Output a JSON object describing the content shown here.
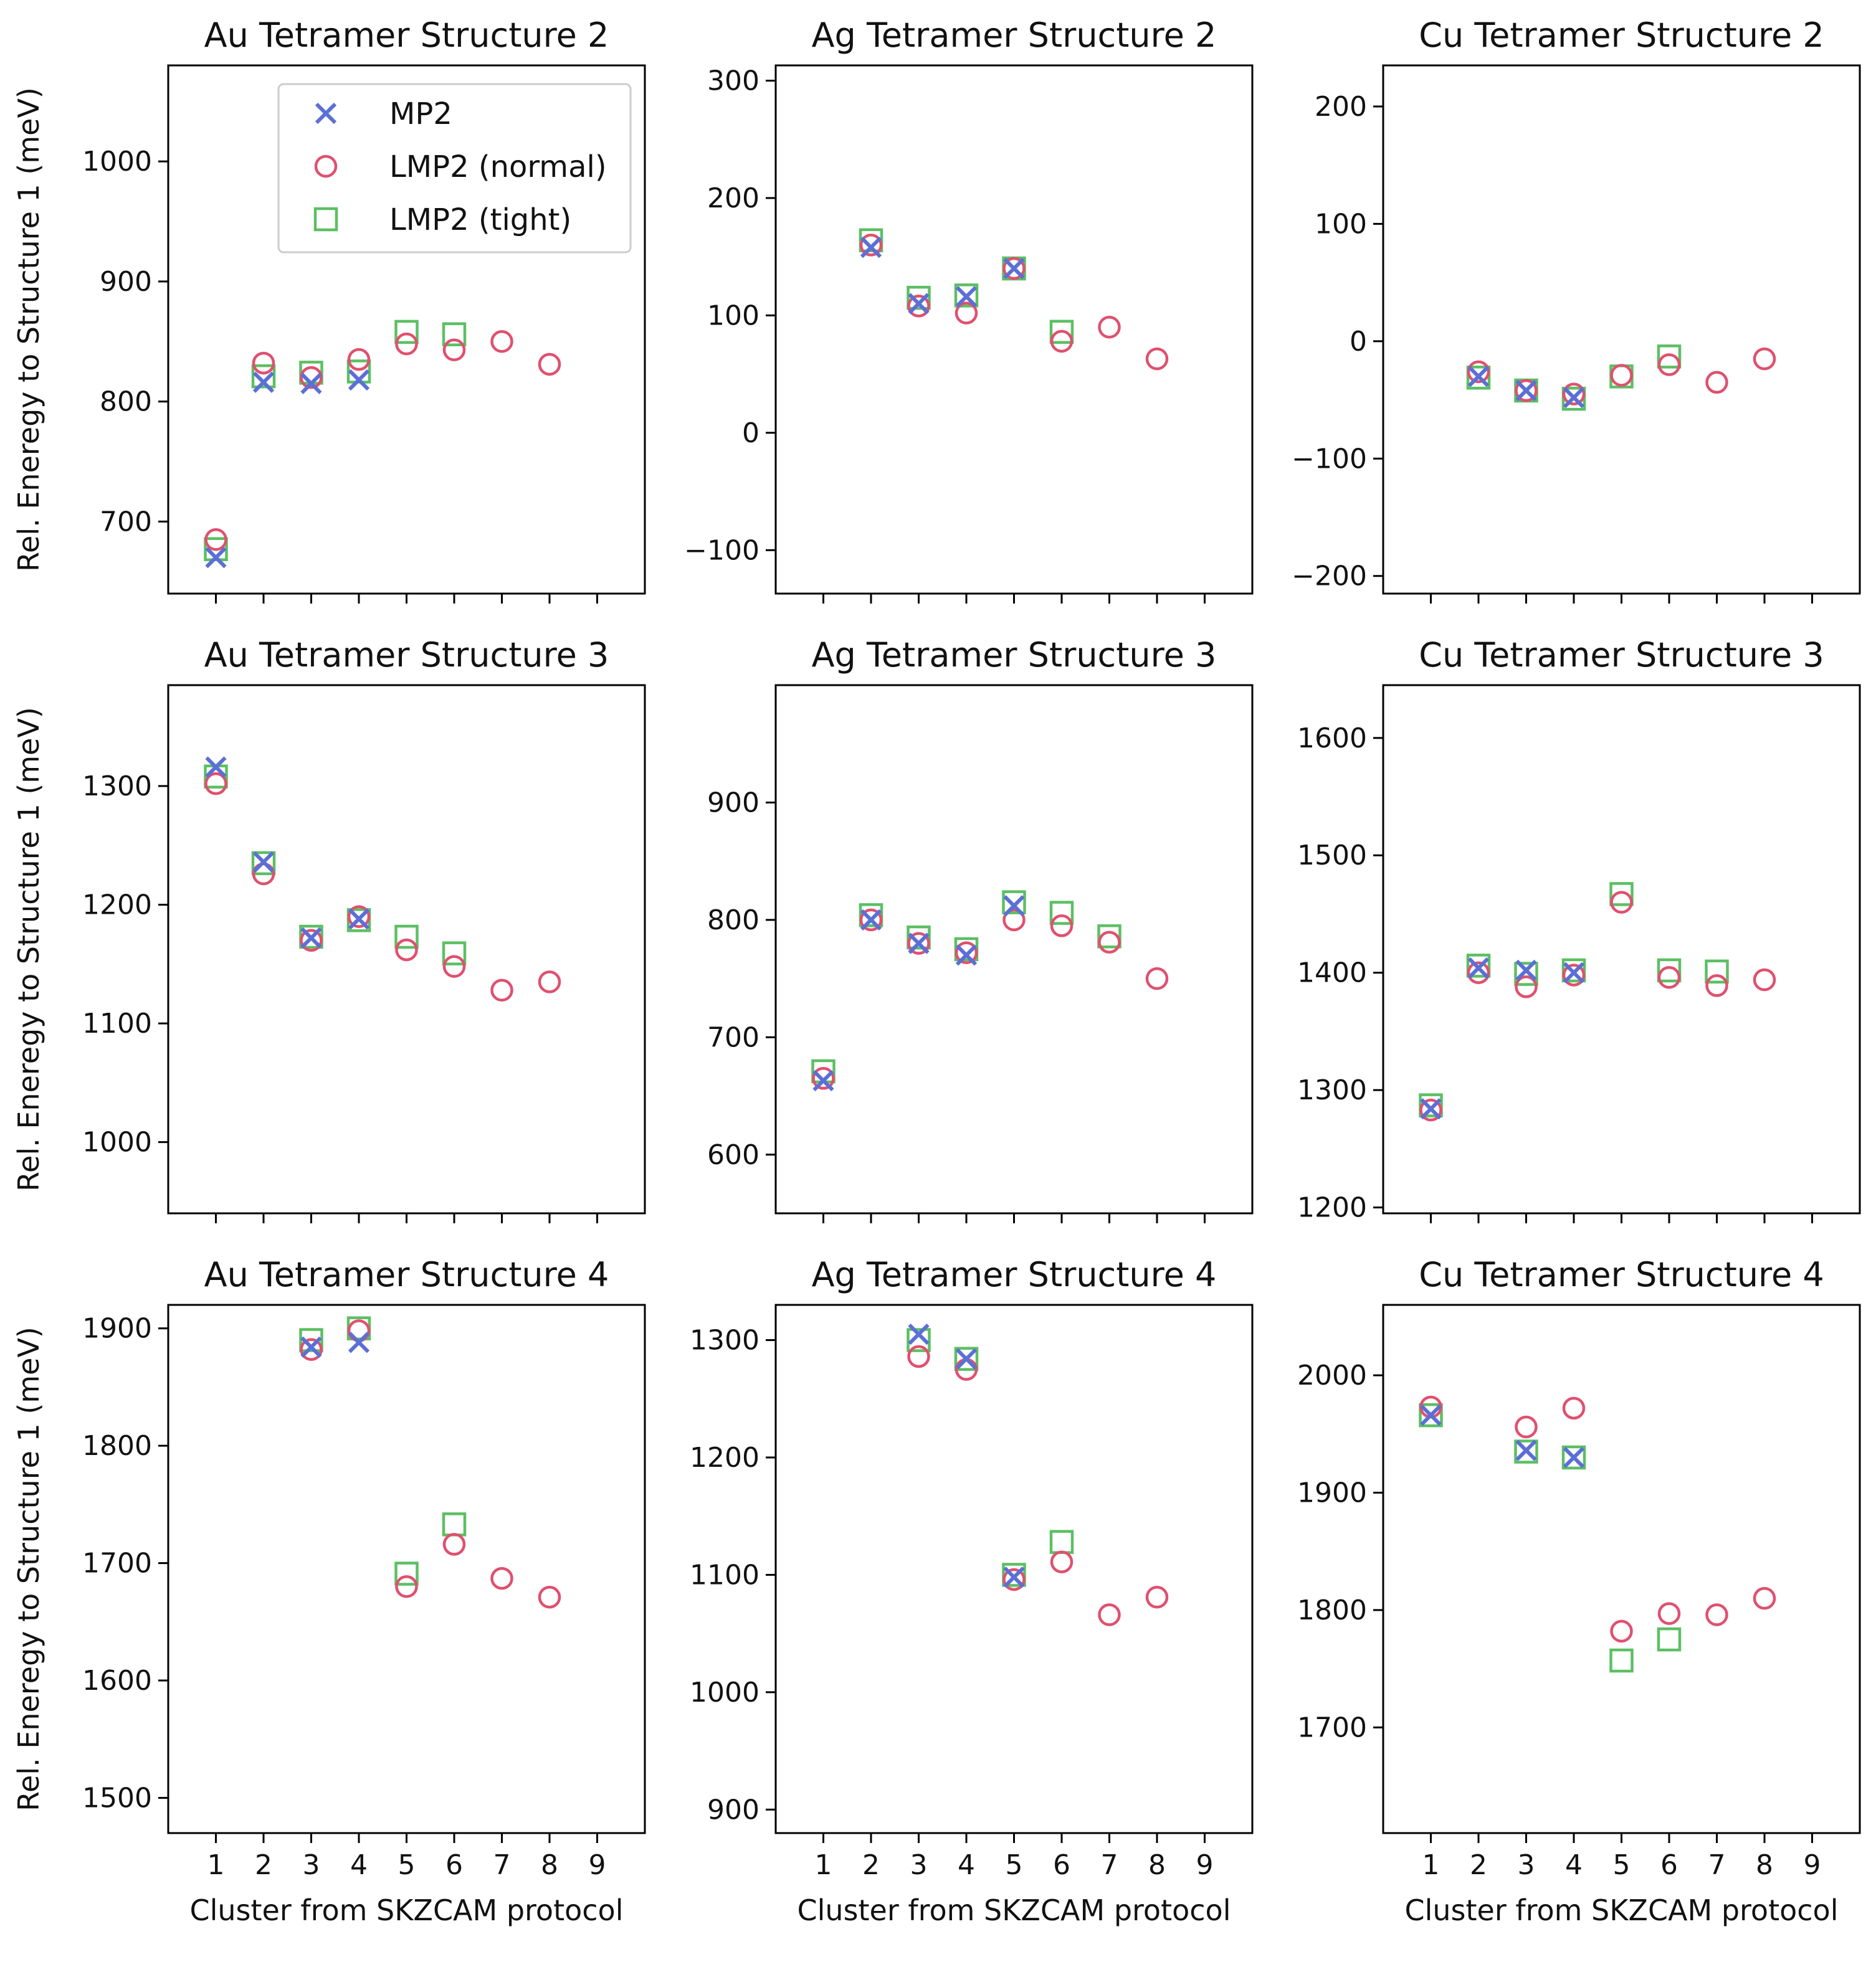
{
  "figure": {
    "colors": {
      "mp2": "#5b6fd6",
      "lmp2_normal": "#e0506f",
      "lmp2_tight": "#5cbf63"
    },
    "legend": {
      "location": "upper-left-inside-first-panel",
      "entries": [
        "MP2",
        "LMP2 (normal)",
        "LMP2 (tight)"
      ]
    }
  },
  "chart_data": [
    {
      "type": "scatter",
      "title": "Au Tetramer Structure 2",
      "xlabel": "",
      "ylabel": "Rel. Eneregy to Structure 1 (meV)",
      "xlim": [
        0,
        10
      ],
      "xticks": [
        1,
        2,
        3,
        4,
        5,
        6,
        7,
        8,
        9
      ],
      "xtick_labels": [
        "",
        "",
        "",
        "",
        "",
        "",
        "",
        "",
        ""
      ],
      "ylim": [
        640,
        1080
      ],
      "yticks": [
        700,
        800,
        900,
        1000
      ],
      "series": [
        {
          "name": "MP2",
          "marker": "x",
          "x": [
            1,
            2,
            3,
            4
          ],
          "y": [
            670,
            816,
            815,
            818
          ]
        },
        {
          "name": "LMP2 (normal)",
          "marker": "o",
          "x": [
            1,
            2,
            3,
            4,
            5,
            6,
            7,
            8
          ],
          "y": [
            685,
            832,
            820,
            835,
            848,
            843,
            850,
            831
          ]
        },
        {
          "name": "LMP2 (tight)",
          "marker": "s",
          "x": [
            1,
            2,
            3,
            4,
            5,
            6
          ],
          "y": [
            677,
            821,
            824,
            825,
            858,
            856
          ]
        }
      ]
    },
    {
      "type": "scatter",
      "title": "Ag Tetramer Structure 2",
      "xlabel": "",
      "ylabel": "",
      "xlim": [
        0,
        10
      ],
      "xticks": [
        1,
        2,
        3,
        4,
        5,
        6,
        7,
        8,
        9
      ],
      "xtick_labels": [
        "",
        "",
        "",
        "",
        "",
        "",
        "",
        "",
        ""
      ],
      "ylim": [
        -137,
        313
      ],
      "yticks": [
        -100,
        0,
        100,
        200,
        300
      ],
      "series": [
        {
          "name": "MP2",
          "marker": "x",
          "x": [
            1,
            2,
            3,
            4,
            5
          ],
          "y": [
            null,
            158,
            110,
            116,
            140
          ]
        },
        {
          "name": "LMP2 (normal)",
          "marker": "o",
          "x": [
            2,
            3,
            4,
            5,
            6,
            7,
            8
          ],
          "y": [
            160,
            108,
            102,
            140,
            78,
            90,
            63
          ]
        },
        {
          "name": "LMP2 (tight)",
          "marker": "s",
          "x": [
            2,
            3,
            4,
            5,
            6
          ],
          "y": [
            164,
            115,
            117,
            140,
            86
          ]
        }
      ]
    },
    {
      "type": "scatter",
      "title": "Cu Tetramer Structure 2",
      "xlabel": "",
      "ylabel": "",
      "xlim": [
        0,
        10
      ],
      "xticks": [
        1,
        2,
        3,
        4,
        5,
        6,
        7,
        8,
        9
      ],
      "xtick_labels": [
        "",
        "",
        "",
        "",
        "",
        "",
        "",
        "",
        ""
      ],
      "ylim": [
        -215,
        235
      ],
      "yticks": [
        -200,
        -100,
        0,
        100,
        200
      ],
      "series": [
        {
          "name": "MP2",
          "marker": "x",
          "x": [
            2,
            3,
            4
          ],
          "y": [
            -30,
            -42,
            -48
          ]
        },
        {
          "name": "LMP2 (normal)",
          "marker": "o",
          "x": [
            2,
            3,
            4,
            5,
            6,
            7,
            8
          ],
          "y": [
            -26,
            -42,
            -45,
            -29,
            -20,
            -35,
            -15
          ]
        },
        {
          "name": "LMP2 (tight)",
          "marker": "s",
          "x": [
            2,
            3,
            4,
            5,
            6
          ],
          "y": [
            -31,
            -42,
            -49,
            -30,
            -13
          ]
        }
      ]
    },
    {
      "type": "scatter",
      "title": "Au Tetramer Structure 3",
      "xlabel": "",
      "ylabel": "Rel. Eneregy to Structure 1 (meV)",
      "xlim": [
        0,
        10
      ],
      "xticks": [
        1,
        2,
        3,
        4,
        5,
        6,
        7,
        8,
        9
      ],
      "xtick_labels": [
        "",
        "",
        "",
        "",
        "",
        "",
        "",
        "",
        ""
      ],
      "ylim": [
        940,
        1385
      ],
      "yticks": [
        1000,
        1100,
        1200,
        1300
      ],
      "series": [
        {
          "name": "MP2",
          "marker": "x",
          "x": [
            1,
            2,
            3,
            4
          ],
          "y": [
            1316,
            1236,
            1172,
            1188
          ]
        },
        {
          "name": "LMP2 (normal)",
          "marker": "o",
          "x": [
            1,
            2,
            3,
            4,
            5,
            6,
            7,
            8
          ],
          "y": [
            1302,
            1226,
            1170,
            1190,
            1162,
            1148,
            1128,
            1135
          ]
        },
        {
          "name": "LMP2 (tight)",
          "marker": "s",
          "x": [
            1,
            2,
            3,
            4,
            5,
            6
          ],
          "y": [
            1308,
            1235,
            1173,
            1187,
            1173,
            1159
          ]
        }
      ]
    },
    {
      "type": "scatter",
      "title": "Ag Tetramer Structure 3",
      "xlabel": "",
      "ylabel": "",
      "xlim": [
        0,
        10
      ],
      "xticks": [
        1,
        2,
        3,
        4,
        5,
        6,
        7,
        8,
        9
      ],
      "xtick_labels": [
        "",
        "",
        "",
        "",
        "",
        "",
        "",
        "",
        ""
      ],
      "ylim": [
        550,
        1000
      ],
      "yticks": [
        600,
        700,
        800,
        900
      ],
      "series": [
        {
          "name": "MP2",
          "marker": "x",
          "x": [
            1,
            2,
            3,
            4,
            5
          ],
          "y": [
            663,
            800,
            780,
            770,
            812
          ]
        },
        {
          "name": "LMP2 (normal)",
          "marker": "o",
          "x": [
            1,
            2,
            3,
            4,
            5,
            6,
            7,
            8
          ],
          "y": [
            665,
            800,
            780,
            772,
            800,
            795,
            781,
            750
          ]
        },
        {
          "name": "LMP2 (tight)",
          "marker": "s",
          "x": [
            1,
            2,
            3,
            4,
            5,
            6,
            7
          ],
          "y": [
            671,
            804,
            785,
            775,
            815,
            806,
            786
          ]
        }
      ]
    },
    {
      "type": "scatter",
      "title": "Cu Tetramer Structure 3",
      "xlabel": "",
      "ylabel": "",
      "xlim": [
        0,
        10
      ],
      "xticks": [
        1,
        2,
        3,
        4,
        5,
        6,
        7,
        8,
        9
      ],
      "xtick_labels": [
        "",
        "",
        "",
        "",
        "",
        "",
        "",
        "",
        ""
      ],
      "ylim": [
        1195,
        1645
      ],
      "yticks": [
        1200,
        1300,
        1400,
        1500,
        1600
      ],
      "series": [
        {
          "name": "MP2",
          "marker": "x",
          "x": [
            1,
            2,
            3,
            4
          ],
          "y": [
            1284,
            1404,
            1402,
            1400
          ]
        },
        {
          "name": "LMP2 (normal)",
          "marker": "o",
          "x": [
            1,
            2,
            3,
            4,
            5,
            6,
            7,
            8
          ],
          "y": [
            1283,
            1400,
            1388,
            1398,
            1460,
            1396,
            1389,
            1394
          ]
        },
        {
          "name": "LMP2 (tight)",
          "marker": "s",
          "x": [
            1,
            2,
            3,
            4,
            5,
            6,
            7
          ],
          "y": [
            1287,
            1406,
            1399,
            1402,
            1467,
            1402,
            1401
          ]
        }
      ]
    },
    {
      "type": "scatter",
      "title": "Au Tetramer Structure 4",
      "xlabel": "Cluster from SKZCAM protocol",
      "ylabel": "Rel. Eneregy to Structure 1 (meV)",
      "xlim": [
        0,
        10
      ],
      "xticks": [
        1,
        2,
        3,
        4,
        5,
        6,
        7,
        8,
        9
      ],
      "xtick_labels": [
        "1",
        "2",
        "3",
        "4",
        "5",
        "6",
        "7",
        "8",
        "9"
      ],
      "ylim": [
        1470,
        1920
      ],
      "yticks": [
        1500,
        1600,
        1700,
        1800,
        1900
      ],
      "series": [
        {
          "name": "MP2",
          "marker": "x",
          "x": [
            3,
            4
          ],
          "y": [
            1884,
            1888
          ]
        },
        {
          "name": "LMP2 (normal)",
          "marker": "o",
          "x": [
            3,
            4,
            5,
            6,
            7,
            8
          ],
          "y": [
            1882,
            1898,
            1680,
            1716,
            1687,
            1671
          ]
        },
        {
          "name": "LMP2 (tight)",
          "marker": "s",
          "x": [
            3,
            4,
            5,
            6
          ],
          "y": [
            1890,
            1900,
            1691,
            1733
          ]
        }
      ]
    },
    {
      "type": "scatter",
      "title": "Ag Tetramer Structure 4",
      "xlabel": "Cluster from SKZCAM protocol",
      "ylabel": "",
      "xlim": [
        0,
        10
      ],
      "xticks": [
        1,
        2,
        3,
        4,
        5,
        6,
        7,
        8,
        9
      ],
      "xtick_labels": [
        "1",
        "2",
        "3",
        "4",
        "5",
        "6",
        "7",
        "8",
        "9"
      ],
      "ylim": [
        880,
        1330
      ],
      "yticks": [
        900,
        1000,
        1100,
        1200,
        1300
      ],
      "series": [
        {
          "name": "MP2",
          "marker": "x",
          "x": [
            3,
            4,
            5
          ],
          "y": [
            1305,
            1284,
            1098
          ]
        },
        {
          "name": "LMP2 (normal)",
          "marker": "o",
          "x": [
            3,
            4,
            5,
            6,
            7,
            8
          ],
          "y": [
            1286,
            1275,
            1096,
            1111,
            1066,
            1081
          ]
        },
        {
          "name": "LMP2 (tight)",
          "marker": "s",
          "x": [
            3,
            4,
            5,
            6
          ],
          "y": [
            1300,
            1284,
            1100,
            1128
          ]
        }
      ]
    },
    {
      "type": "scatter",
      "title": "Cu Tetramer Structure 4",
      "xlabel": "Cluster from SKZCAM protocol",
      "ylabel": "",
      "xlim": [
        0,
        10
      ],
      "xticks": [
        1,
        2,
        3,
        4,
        5,
        6,
        7,
        8,
        9
      ],
      "xtick_labels": [
        "1",
        "2",
        "3",
        "4",
        "5",
        "6",
        "7",
        "8",
        "9"
      ],
      "ylim": [
        1610,
        2060
      ],
      "yticks": [
        1700,
        1800,
        1900,
        2000
      ],
      "series": [
        {
          "name": "MP2",
          "marker": "x",
          "x": [
            1,
            3,
            4
          ],
          "y": [
            1966,
            1936,
            1930
          ]
        },
        {
          "name": "LMP2 (normal)",
          "marker": "o",
          "x": [
            1,
            3,
            4,
            5,
            6,
            7,
            8
          ],
          "y": [
            1973,
            1956,
            1972,
            1782,
            1797,
            1796,
            1810
          ]
        },
        {
          "name": "LMP2 (tight)",
          "marker": "s",
          "x": [
            1,
            3,
            4,
            5,
            6
          ],
          "y": [
            1966,
            1935,
            1930,
            1757,
            1775
          ]
        }
      ]
    }
  ]
}
